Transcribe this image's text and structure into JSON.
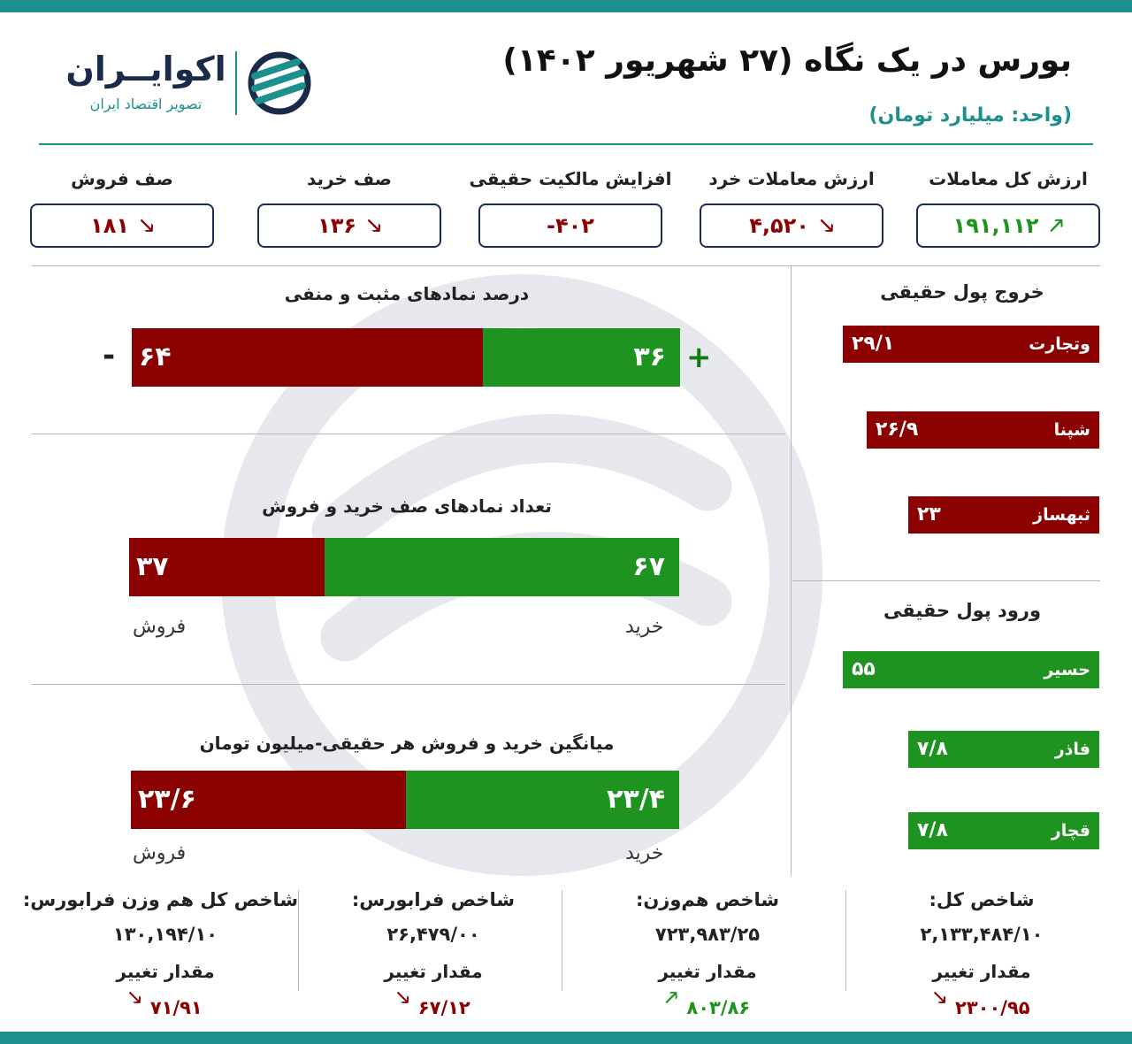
{
  "header": {
    "title": "بورس در یک نگاه (۲۷ شهریور ۱۴۰۲)",
    "unit": "(واحد: میلیارد تومان)"
  },
  "logo": {
    "name": "اکوایــران",
    "tagline": "تصویر اقتصاد ایران",
    "icon": "ecoiran-logo-mark"
  },
  "colors": {
    "accent": "#1d8f8c",
    "negative": "#8b0000",
    "positive": "#1f931f",
    "box_border": "#1c2a55"
  },
  "metrics": [
    {
      "label": "ارزش کل معاملات",
      "value": "۱۹۱,۱۱۲",
      "trend": "up",
      "arrow": "🡕"
    },
    {
      "label": "ارزش معاملات خرد",
      "value": "۴,۵۲۰",
      "trend": "down",
      "arrow": "🡖"
    },
    {
      "label": "افزایش مالکیت حقیقی",
      "value": "-۴۰۲",
      "trend": "none",
      "arrow": ""
    },
    {
      "label": "صف خرید",
      "value": "۱۳۶",
      "trend": "down",
      "arrow": "🡖"
    },
    {
      "label": "صف فروش",
      "value": "۱۸۱",
      "trend": "down",
      "arrow": "🡖"
    }
  ],
  "positive_negative": {
    "title": "درصد نمادهای مثبت و منفی",
    "positive": 36,
    "negative": 64,
    "positive_text": "۳۶",
    "negative_text": "۶۴",
    "plus_sign": "+",
    "minus_sign": "-"
  },
  "queues": {
    "title": "تعداد نمادهای صف خرید و فروش",
    "buy": 67,
    "sell": 37,
    "buy_text": "۶۷",
    "sell_text": "۳۷",
    "buy_label": "خرید",
    "sell_label": "فروش"
  },
  "averages": {
    "title": "میانگین خرید و فروش هر حقیقی-میلیون تومان",
    "buy": 23.4,
    "sell": 23.6,
    "buy_text": "۲۳/۴",
    "sell_text": "۲۳/۶",
    "buy_label": "خرید",
    "sell_label": "فروش"
  },
  "outflow": {
    "title": "خروج پول حقیقی",
    "items": [
      {
        "name": "وتجارت",
        "value": 29.1,
        "text": "۲۹/۱"
      },
      {
        "name": "شپنا",
        "value": 26.9,
        "text": "۲۶/۹"
      },
      {
        "name": "ثبهساز",
        "value": 23,
        "text": "۲۳"
      }
    ]
  },
  "inflow": {
    "title": "ورود پول حقیقی",
    "items": [
      {
        "name": "حسیر",
        "value": 55,
        "text": "۵۵"
      },
      {
        "name": "فاذر",
        "value": 7.8,
        "text": "۷/۸"
      },
      {
        "name": "قچار",
        "value": 7.8,
        "text": "۷/۸"
      }
    ]
  },
  "indices": [
    {
      "name": "شاخص کل:",
      "value": "۲,۱۳۳,۴۸۴/۱۰",
      "change_label": "مقدار تغییر",
      "change": "۲۳۰۰/۹۵",
      "trend": "down",
      "arrow": "🡖"
    },
    {
      "name": "شاخص هم‌وزن:",
      "value": "۷۲۳,۹۸۳/۲۵",
      "change_label": "مقدار تغییر",
      "change": "۸۰۳/۸۶",
      "trend": "up",
      "arrow": "🡕"
    },
    {
      "name": "شاخص فرابورس:",
      "value": "۲۶,۴۷۹/۰۰",
      "change_label": "مقدار تغییر",
      "change": "۶۷/۱۲",
      "trend": "down",
      "arrow": "🡖"
    },
    {
      "name": "شاخص کل هم وزن فرابورس:",
      "value": "۱۳۰,۱۹۴/۱۰",
      "change_label": "مقدار تغییر",
      "change": "۷۱/۹۱",
      "trend": "down",
      "arrow": "🡖"
    }
  ]
}
